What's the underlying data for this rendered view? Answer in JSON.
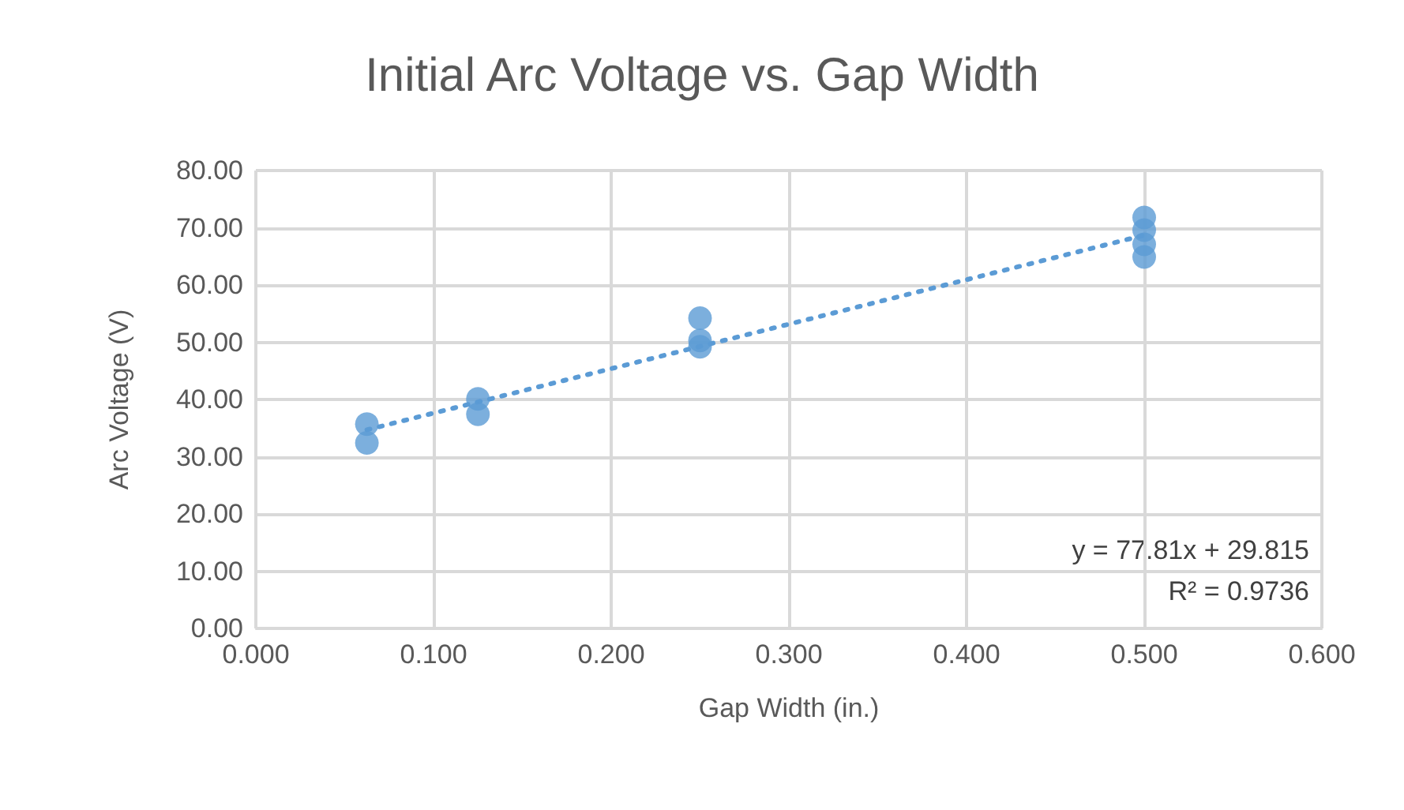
{
  "chart_data": {
    "type": "scatter",
    "title": "Initial Arc Voltage vs. Gap Width",
    "xlabel": "Gap Width (in.)",
    "ylabel": "Arc Voltage (V)",
    "series": [
      {
        "color": "#5b9bd5",
        "marker": "circle",
        "x": [
          0.0625,
          0.0625,
          0.125,
          0.125,
          0.25,
          0.25,
          0.25,
          0.5,
          0.5,
          0.5,
          0.5
        ],
        "values": [
          35.7,
          32.4,
          40.1,
          37.4,
          54.2,
          50.3,
          49.2,
          71.8,
          69.6,
          67.1,
          64.9
        ]
      },
      {
        "type": "line",
        "color": "#5b9bd5",
        "line_style": "dotted",
        "marker": "none",
        "x": [
          0.0625,
          0.5
        ],
        "values": [
          34.7,
          68.7
        ]
      }
    ],
    "annotations": [
      "y = 77.81x + 29.815",
      "R² = 0.9736"
    ],
    "xlim": [
      0,
      0.6
    ],
    "xticks": [
      {
        "value": 0,
        "label": "0.000"
      },
      {
        "value": 0.1,
        "label": "0.100"
      },
      {
        "value": 0.2,
        "label": "0.200"
      },
      {
        "value": 0.3,
        "label": "0.300"
      },
      {
        "value": 0.4,
        "label": "0.400"
      },
      {
        "value": 0.5,
        "label": "0.500"
      },
      {
        "value": 0.6,
        "label": "0.600"
      }
    ],
    "ylim": [
      0,
      80
    ],
    "yticks": [
      {
        "value": 0,
        "label": "0.00"
      },
      {
        "value": 10,
        "label": "10.00"
      },
      {
        "value": 20,
        "label": "20.00"
      },
      {
        "value": 30,
        "label": "30.00"
      },
      {
        "value": 40,
        "label": "40.00"
      },
      {
        "value": 50,
        "label": "50.00"
      },
      {
        "value": 60,
        "label": "60.00"
      },
      {
        "value": 70,
        "label": "70.00"
      },
      {
        "value": 80,
        "label": "80.00"
      }
    ],
    "grid": true
  }
}
